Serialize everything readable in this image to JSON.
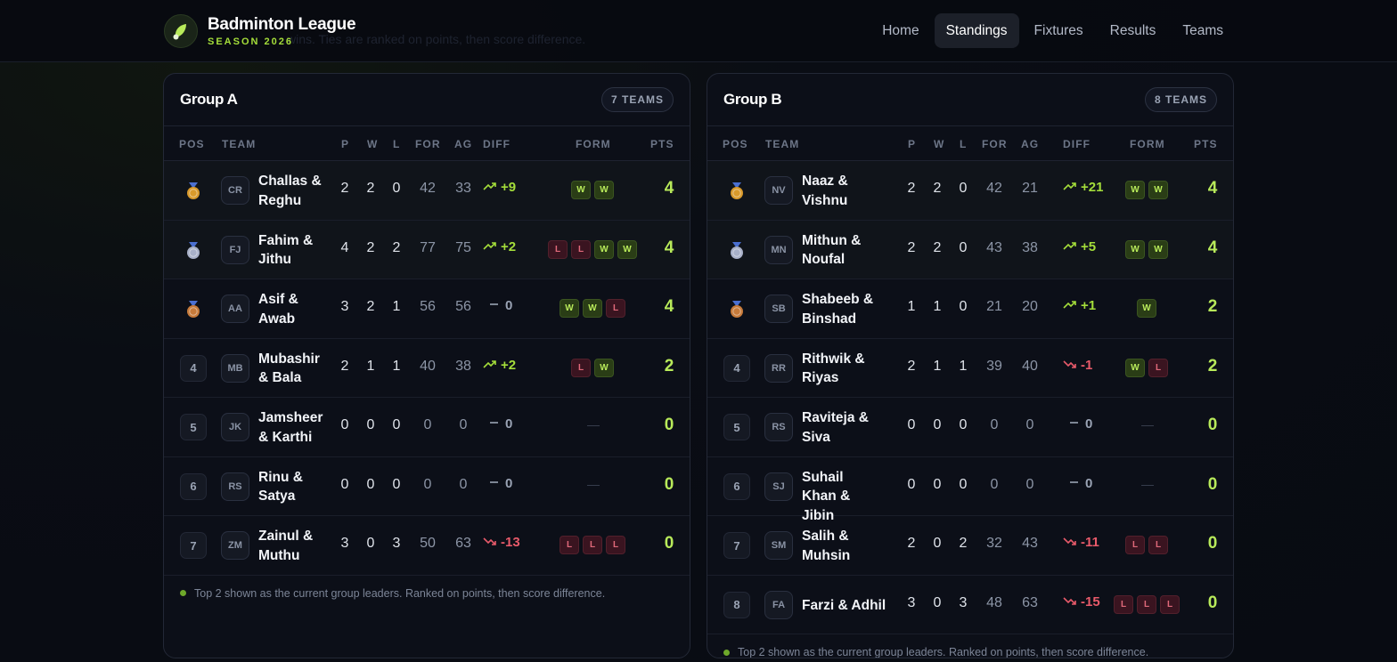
{
  "app": {
    "title": "Badminton League",
    "season": "SEASON 2026",
    "ghost_subtitle": "wins. Ties are ranked on points, then score difference."
  },
  "nav": {
    "items": [
      "Home",
      "Standings",
      "Fixtures",
      "Results",
      "Teams"
    ],
    "active": "Standings"
  },
  "columns": {
    "pos": "POS",
    "team": "TEAM",
    "p": "P",
    "w": "W",
    "l": "L",
    "for": "FOR",
    "ag": "AG",
    "diff": "DIFF",
    "form": "FORM",
    "pts": "PTS"
  },
  "footnote": "Top 2 shown as the current group leaders. Ranked on points, then score difference.",
  "form_empty": "—",
  "medal_colors": {
    "gold": "#d99a2b",
    "silver": "#a8b0c8",
    "bronze": "#c77a3a"
  },
  "groups": [
    {
      "title": "Group A",
      "badge": "7 TEAMS",
      "rows": [
        {
          "pos": "1",
          "medal": "gold",
          "initials": "CR",
          "name": "Challas & Reghu",
          "p": "2",
          "w": "2",
          "l": "0",
          "for": "42",
          "ag": "33",
          "diff": "+9",
          "trend": "up",
          "form": [
            "W",
            "W"
          ],
          "pts": "4",
          "leader": true
        },
        {
          "pos": "2",
          "medal": "silver",
          "initials": "FJ",
          "name": "Fahim & Jithu",
          "p": "4",
          "w": "2",
          "l": "2",
          "for": "77",
          "ag": "75",
          "diff": "+2",
          "trend": "up",
          "form": [
            "L",
            "L",
            "W",
            "W"
          ],
          "pts": "4",
          "leader": true
        },
        {
          "pos": "3",
          "medal": "bronze",
          "initials": "AA",
          "name": "Asif & Awab",
          "p": "3",
          "w": "2",
          "l": "1",
          "for": "56",
          "ag": "56",
          "diff": "0",
          "trend": "flat",
          "form": [
            "W",
            "W",
            "L"
          ],
          "pts": "4"
        },
        {
          "pos": "4",
          "initials": "MB",
          "name": "Mubashir & Bala",
          "p": "2",
          "w": "1",
          "l": "1",
          "for": "40",
          "ag": "38",
          "diff": "+2",
          "trend": "up",
          "form": [
            "L",
            "W"
          ],
          "pts": "2"
        },
        {
          "pos": "5",
          "initials": "JK",
          "name": "Jamsheer & Karthi",
          "p": "0",
          "w": "0",
          "l": "0",
          "for": "0",
          "ag": "0",
          "diff": "0",
          "trend": "flat",
          "form": [],
          "pts": "0"
        },
        {
          "pos": "6",
          "initials": "RS",
          "name": "Rinu & Satya",
          "p": "0",
          "w": "0",
          "l": "0",
          "for": "0",
          "ag": "0",
          "diff": "0",
          "trend": "flat",
          "form": [],
          "pts": "0"
        },
        {
          "pos": "7",
          "initials": "ZM",
          "name": "Zainul & Muthu",
          "p": "3",
          "w": "0",
          "l": "3",
          "for": "50",
          "ag": "63",
          "diff": "-13",
          "trend": "down",
          "form": [
            "L",
            "L",
            "L"
          ],
          "pts": "0"
        }
      ]
    },
    {
      "title": "Group B",
      "badge": "8 TEAMS",
      "rows": [
        {
          "pos": "1",
          "medal": "gold",
          "initials": "NV",
          "name": "Naaz & Vishnu",
          "p": "2",
          "w": "2",
          "l": "0",
          "for": "42",
          "ag": "21",
          "diff": "+21",
          "trend": "up",
          "form": [
            "W",
            "W"
          ],
          "pts": "4",
          "leader": true
        },
        {
          "pos": "2",
          "medal": "silver",
          "initials": "MN",
          "name": "Mithun & Noufal",
          "p": "2",
          "w": "2",
          "l": "0",
          "for": "43",
          "ag": "38",
          "diff": "+5",
          "trend": "up",
          "form": [
            "W",
            "W"
          ],
          "pts": "4",
          "leader": true
        },
        {
          "pos": "3",
          "medal": "bronze",
          "initials": "SB",
          "name": "Shabeeb & Binshad",
          "p": "1",
          "w": "1",
          "l": "0",
          "for": "21",
          "ag": "20",
          "diff": "+1",
          "trend": "up",
          "form": [
            "W"
          ],
          "pts": "2"
        },
        {
          "pos": "4",
          "initials": "RR",
          "name": "Rithwik & Riyas",
          "p": "2",
          "w": "1",
          "l": "1",
          "for": "39",
          "ag": "40",
          "diff": "-1",
          "trend": "down",
          "form": [
            "W",
            "L"
          ],
          "pts": "2"
        },
        {
          "pos": "5",
          "initials": "RS",
          "name": "Raviteja & Siva",
          "p": "0",
          "w": "0",
          "l": "0",
          "for": "0",
          "ag": "0",
          "diff": "0",
          "trend": "flat",
          "form": [],
          "pts": "0"
        },
        {
          "pos": "6",
          "initials": "SJ",
          "name": "Suhail Khan & Jibin",
          "p": "0",
          "w": "0",
          "l": "0",
          "for": "0",
          "ag": "0",
          "diff": "0",
          "trend": "flat",
          "form": [],
          "pts": "0"
        },
        {
          "pos": "7",
          "initials": "SM",
          "name": "Salih & Muhsin",
          "p": "2",
          "w": "0",
          "l": "2",
          "for": "32",
          "ag": "43",
          "diff": "-11",
          "trend": "down",
          "form": [
            "L",
            "L"
          ],
          "pts": "0"
        },
        {
          "pos": "8",
          "initials": "FA",
          "name": "Farzi & Adhil",
          "p": "3",
          "w": "0",
          "l": "3",
          "for": "48",
          "ag": "63",
          "diff": "-15",
          "trend": "down",
          "form": [
            "L",
            "L",
            "L"
          ],
          "pts": "0",
          "single_line": true
        }
      ]
    }
  ]
}
